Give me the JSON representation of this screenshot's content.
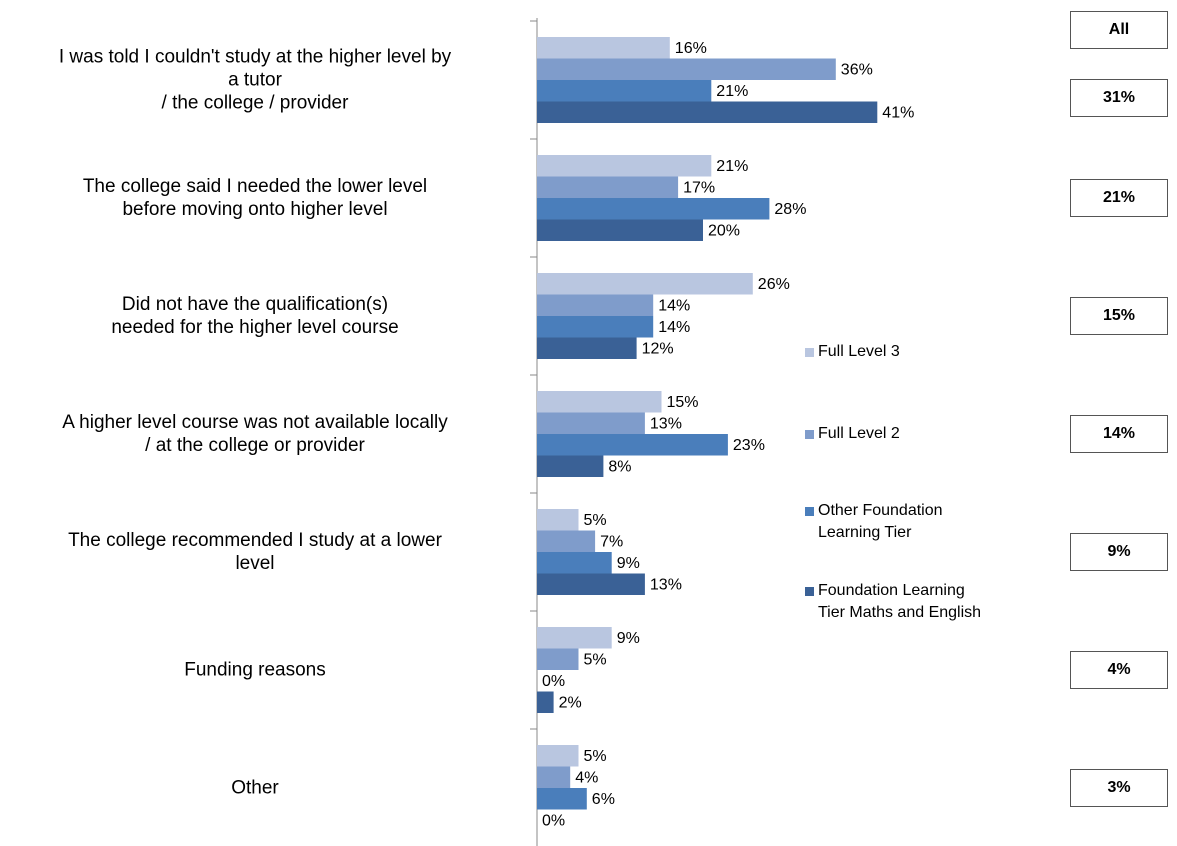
{
  "chart_data": {
    "type": "bar",
    "orientation": "horizontal",
    "categories": [
      "I was told I couldn't study at the higher level by\na tutor\n/ the college / provider",
      "The college said I needed the lower level\nbefore moving onto higher level",
      "Did not have the qualification(s)\nneeded for the higher level course",
      "A higher level course was not available locally\n/ at the college or provider",
      "The college recommended I study at a lower\nlevel",
      "Funding reasons",
      "Other"
    ],
    "series": [
      {
        "name": "Full Level 3",
        "color": "#b9c6e0",
        "values": [
          16,
          21,
          26,
          15,
          5,
          9,
          5
        ],
        "value_labels": [
          "16%",
          "21%",
          "26%",
          "15%",
          "5%",
          "9%",
          "5%"
        ]
      },
      {
        "name": "Full Level 2",
        "color": "#7f9ccb",
        "values": [
          36,
          17,
          14,
          13,
          7,
          5,
          4
        ],
        "value_labels": [
          "36%",
          "17%",
          "14%",
          "13%",
          "7%",
          "5%",
          "4%"
        ]
      },
      {
        "name": "Other Foundation\nLearning Tier",
        "color": "#4a7ebb",
        "values": [
          21,
          28,
          14,
          23,
          9,
          0,
          6
        ],
        "value_labels": [
          "21%",
          "28%",
          "14%",
          "23%",
          "9%",
          "0%",
          "6%"
        ]
      },
      {
        "name": "Foundation Learning\nTier Maths and English",
        "color": "#3a6196",
        "values": [
          41,
          20,
          12,
          8,
          13,
          2,
          0
        ],
        "value_labels": [
          "41%",
          "20%",
          "12%",
          "8%",
          "13%",
          "2%",
          "0%"
        ]
      }
    ],
    "xlim": [
      0,
      50
    ],
    "all": {
      "header": "All",
      "values": [
        31,
        21,
        15,
        14,
        9,
        4,
        3
      ],
      "value_labels": [
        "31%",
        "21%",
        "15%",
        "14%",
        "9%",
        "4%",
        "3%"
      ]
    }
  }
}
